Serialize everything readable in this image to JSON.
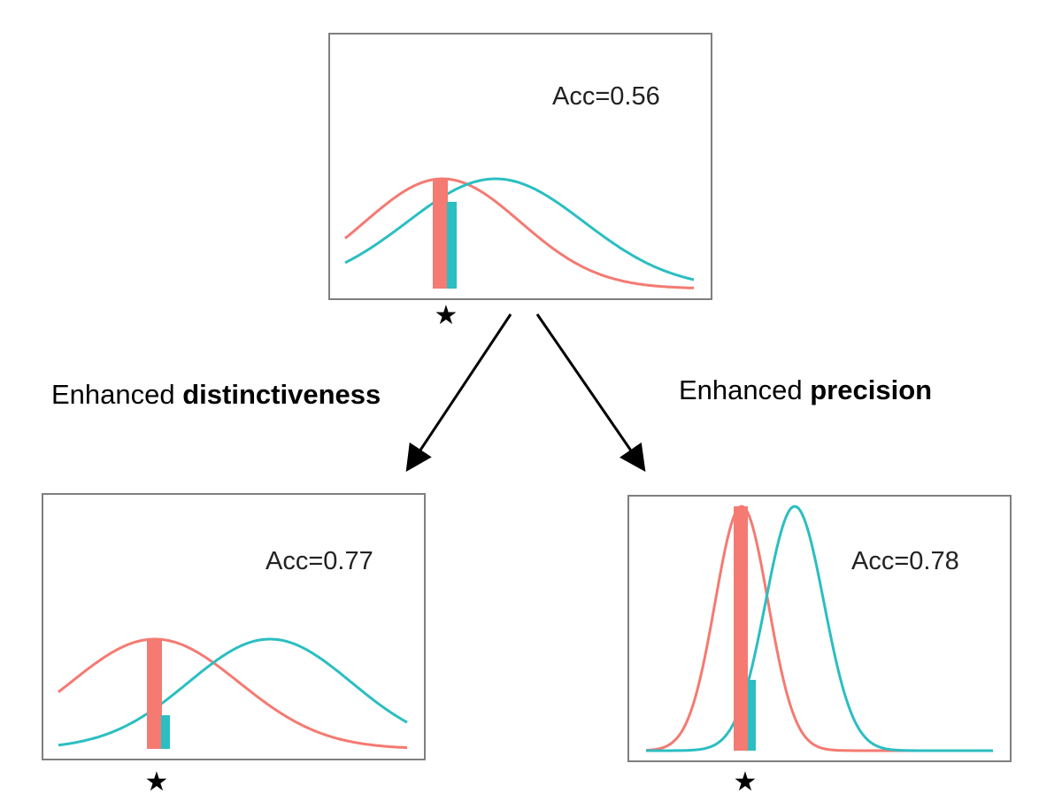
{
  "panels": [
    {
      "id": "top",
      "acc_label": "Acc=0.56",
      "accuracy": 0.56,
      "star": "★",
      "colors": {
        "red": "#f47a72",
        "teal": "#2bbec2"
      }
    },
    {
      "id": "bottom-left",
      "acc_label": "Acc=0.77",
      "accuracy": 0.77,
      "star": "★",
      "colors": {
        "red": "#f47a72",
        "teal": "#2bbec2"
      }
    },
    {
      "id": "bottom-right",
      "acc_label": "Acc=0.78",
      "accuracy": 0.78,
      "star": "★",
      "colors": {
        "red": "#f47a72",
        "teal": "#2bbec2"
      }
    }
  ],
  "branches": {
    "left": {
      "prefix": "Enhanced",
      "emphasis": "distinctiveness"
    },
    "right": {
      "prefix": "Enhanced",
      "emphasis": "precision"
    }
  }
}
